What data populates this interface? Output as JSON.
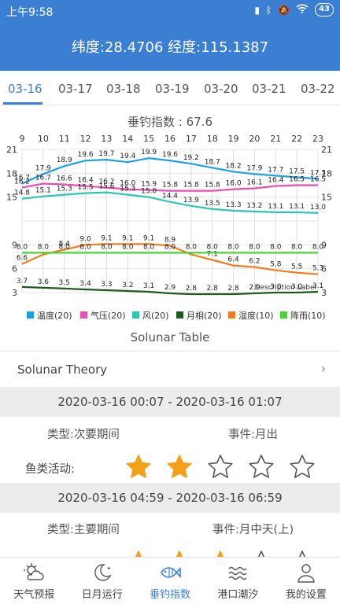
{
  "status": {
    "time": "上午9:58",
    "battery": "43"
  },
  "header": {
    "title": "纬度:28.4706 经度:115.1387"
  },
  "date_tabs": [
    "03-16",
    "03-17",
    "03-18",
    "03-19",
    "03-20",
    "03-21",
    "03-22"
  ],
  "chart_title": "垂钓指数 : 67.6",
  "chart_data": {
    "type": "line",
    "x": [
      9,
      10,
      11,
      12,
      13,
      14,
      15,
      16,
      17,
      18,
      19,
      20,
      21,
      22,
      23
    ],
    "y_left_ticks": [
      3,
      6,
      9,
      12,
      15,
      18,
      21
    ],
    "y_left_tick_labels": [
      "3",
      "6",
      "9",
      "",
      "15",
      "18",
      "21"
    ],
    "y_right_tick_labels": [
      "3",
      "6",
      "9",
      "",
      "15",
      "18",
      "21"
    ],
    "ylim": [
      3,
      21
    ],
    "annotation": "Description Label",
    "legend_position": "bottom",
    "series": [
      {
        "name": "温度(20)",
        "color": "#1ba1e2",
        "values": [
          16.7,
          17.9,
          18.9,
          19.6,
          19.7,
          19.4,
          19.9,
          19.6,
          19.2,
          18.7,
          18.2,
          17.9,
          17.7,
          17.5,
          17.3
        ],
        "labels": [
          "16.7",
          "17.9",
          "18.9",
          "19.6",
          "19.7",
          "19.4",
          "19.9",
          "19.6",
          "19.2",
          "18.7",
          "18.2",
          "17.9",
          "17.7",
          "17.5",
          "17.3"
        ]
      },
      {
        "name": "气压(20)",
        "color": "#e94fb4",
        "values": [
          16.2,
          16.7,
          16.6,
          16.4,
          16.2,
          16.0,
          15.9,
          15.8,
          15.8,
          15.8,
          16.0,
          16.1,
          16.4,
          16.5,
          16.5
        ],
        "labels": [
          "16.2",
          "16.7",
          "16.6",
          "16.4",
          "16.2",
          "16.0",
          "15.9",
          "15.8",
          "15.8",
          "15.8",
          "16.0",
          "16.1",
          "16.4",
          "16.5",
          "16.5"
        ]
      },
      {
        "name": "风(20)",
        "color": "#2ec4b6",
        "values": [
          14.8,
          15.1,
          15.3,
          15.5,
          15.6,
          15.3,
          15.0,
          14.4,
          13.9,
          13.5,
          13.3,
          13.2,
          13.1,
          13.1,
          13.0
        ],
        "labels": [
          "14.8",
          "15.1",
          "15.3",
          "15.5",
          "15.6",
          "15.3",
          "15.0",
          "14.4",
          "13.9",
          "13.5",
          "13.3",
          "13.2",
          "13.1",
          "13.1",
          "13.0"
        ]
      },
      {
        "name": "月相(20)",
        "color": "#1e5a1e",
        "values": [
          3.7,
          3.6,
          3.5,
          3.4,
          3.3,
          3.2,
          3.1,
          2.9,
          2.8,
          2.8,
          2.8,
          2.9,
          3.0,
          3.0,
          3.1
        ],
        "labels": [
          "3.7",
          "3.6",
          "3.5",
          "3.4",
          "3.3",
          "3.2",
          "3.1",
          "2.9",
          "2.8",
          "2.8",
          "2.8",
          "2.9",
          "3.0",
          "3.0",
          "3.1"
        ]
      },
      {
        "name": "湿度(10)",
        "color": "#f07c1a",
        "values": [
          6.6,
          7.8,
          8.4,
          9.0,
          9.1,
          9.1,
          9.1,
          8.9,
          7.8,
          7.1,
          6.4,
          6.2,
          5.8,
          5.5,
          5.3
        ],
        "labels": [
          "6.6",
          "",
          "8.4",
          "9.0",
          "9.1",
          "9.1",
          "9.1",
          "8.9",
          "",
          "7.1",
          "6.4",
          "6.2",
          "5.8",
          "5.5",
          "5.3"
        ]
      },
      {
        "name": "降雨(10)",
        "color": "#4cd137",
        "values": [
          8.0,
          8.0,
          8.0,
          8.0,
          8.0,
          8.0,
          8.0,
          8.0,
          8.0,
          8.0,
          8.0,
          8.0,
          8.0,
          8.0,
          8.0
        ],
        "labels": [
          "8.0",
          "8.0",
          "8.0",
          "8.0",
          "8.0",
          "8.0",
          "8.0",
          "8.0",
          "8.0",
          "8.0",
          "8.0",
          "8.0",
          "8.0",
          "8.0",
          "8.0"
        ]
      }
    ]
  },
  "solunar": {
    "title": "Solunar Table",
    "theory_label": "Solunar Theory",
    "periods": [
      {
        "range": "2020-03-16 00:07 - 2020-03-16 01:07",
        "type": "类型:次要期间",
        "event": "事件:月出",
        "activity_label": "鱼类活动:",
        "stars_filled": 2,
        "stars_total": 5
      },
      {
        "range": "2020-03-16 04:59 - 2020-03-16 06:59",
        "type": "类型:主要期间",
        "event": "事件:月中天(上)",
        "stars_filled": 3,
        "stars_total": 5
      }
    ]
  },
  "nav": [
    {
      "label": "天气预报",
      "icon": "weather-icon"
    },
    {
      "label": "日月运行",
      "icon": "moon-icon"
    },
    {
      "label": "垂钓指数",
      "icon": "fish-icon",
      "active": true
    },
    {
      "label": "港口潮汐",
      "icon": "tide-icon"
    },
    {
      "label": "我的设置",
      "icon": "user-icon"
    }
  ]
}
